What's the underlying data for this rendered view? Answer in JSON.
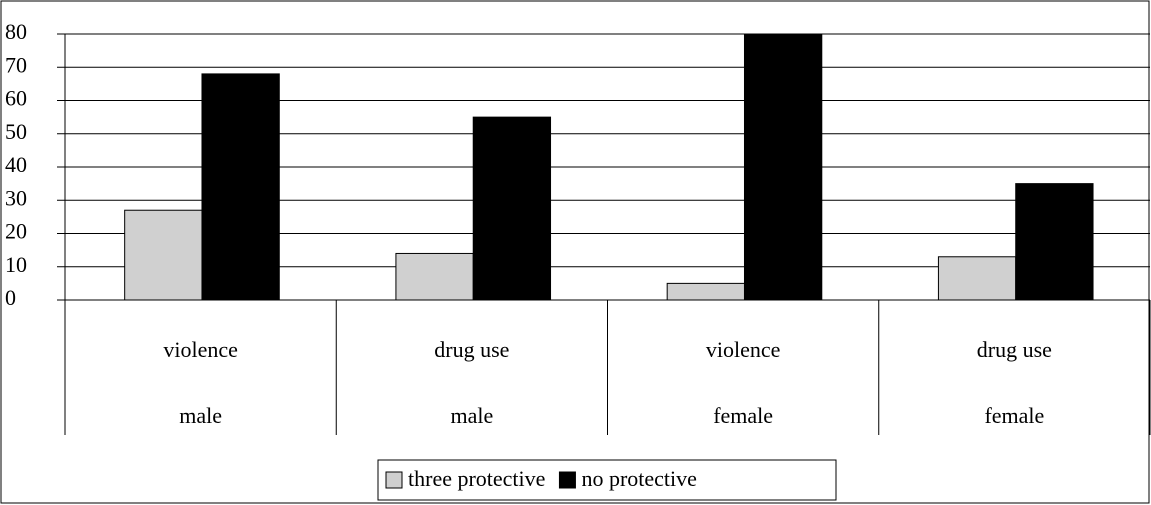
{
  "chart_data": {
    "type": "bar",
    "categories": [
      "violence",
      "drug use",
      "violence",
      "drug use"
    ],
    "groups": [
      "male",
      "male",
      "female",
      "female"
    ],
    "series": [
      {
        "name": "three protective",
        "color": "#d0d0d0",
        "values": [
          27,
          14,
          5,
          13
        ]
      },
      {
        "name": "no protective",
        "color": "#000000",
        "values": [
          68,
          55,
          80,
          35
        ]
      }
    ],
    "ylim": [
      0,
      80
    ],
    "yticks": [
      0,
      10,
      20,
      30,
      40,
      50,
      60,
      70,
      80
    ],
    "grid": true,
    "legend": "bottom"
  }
}
